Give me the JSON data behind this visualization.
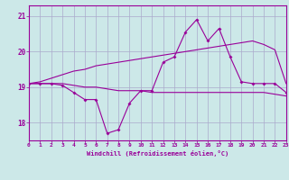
{
  "xlabel": "Windchill (Refroidissement éolien,°C)",
  "xlim": [
    0,
    23
  ],
  "ylim": [
    17.5,
    21.3
  ],
  "yticks": [
    18,
    19,
    20,
    21
  ],
  "xticks": [
    0,
    1,
    2,
    3,
    4,
    5,
    6,
    7,
    8,
    9,
    10,
    11,
    12,
    13,
    14,
    15,
    16,
    17,
    18,
    19,
    20,
    21,
    22,
    23
  ],
  "bg_color": "#cce8e8",
  "grid_color": "#aaaacc",
  "line_color": "#990099",
  "hours": [
    0,
    1,
    2,
    3,
    4,
    5,
    6,
    7,
    8,
    9,
    10,
    11,
    12,
    13,
    14,
    15,
    16,
    17,
    18,
    19,
    20,
    21,
    22,
    23
  ],
  "temp_line": [
    19.1,
    19.1,
    19.1,
    19.05,
    18.85,
    18.65,
    18.65,
    17.7,
    17.8,
    18.55,
    18.9,
    18.9,
    19.7,
    19.85,
    20.55,
    20.9,
    20.3,
    20.65,
    19.85,
    19.15,
    19.1,
    19.1,
    19.1,
    18.85
  ],
  "upper_line": [
    19.1,
    19.15,
    19.25,
    19.35,
    19.45,
    19.5,
    19.6,
    19.65,
    19.7,
    19.75,
    19.8,
    19.85,
    19.9,
    19.95,
    20.0,
    20.05,
    20.1,
    20.15,
    20.2,
    20.25,
    20.3,
    20.2,
    20.05,
    19.1
  ],
  "lower_line": [
    19.1,
    19.1,
    19.1,
    19.1,
    19.05,
    19.0,
    19.0,
    18.95,
    18.9,
    18.9,
    18.9,
    18.85,
    18.85,
    18.85,
    18.85,
    18.85,
    18.85,
    18.85,
    18.85,
    18.85,
    18.85,
    18.85,
    18.8,
    18.75
  ]
}
